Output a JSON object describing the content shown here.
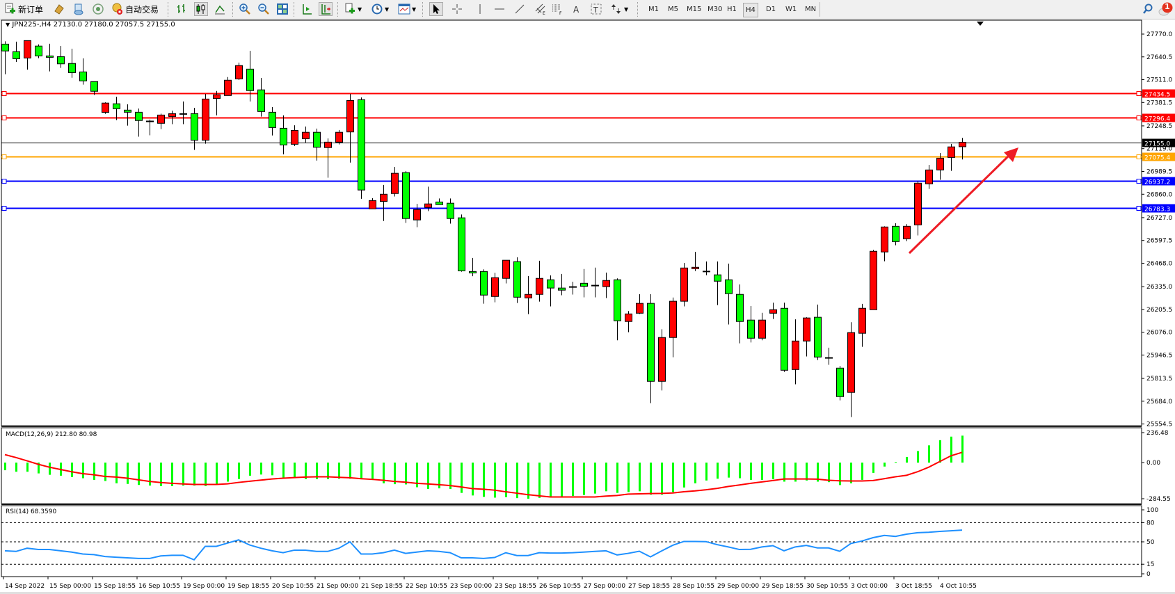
{
  "toolbar": {
    "new_order_label": "新订单",
    "auto_trading_label": "自动交易",
    "timeframes": [
      "M1",
      "M5",
      "M15",
      "M30",
      "H1",
      "H4",
      "D1",
      "W1",
      "MN"
    ],
    "active_timeframe": "H4",
    "notification_count": "1"
  },
  "chart_header": "JPN225-,H4  27130.0 27180.0 27057.5 27155.0",
  "macd_label": "MACD(12,26,9) 212.80 80.98",
  "rsi_label": "RSI(14) 68.3590",
  "colors": {
    "bull": "#ff0000",
    "bear": "#00ff00",
    "macd_hist": "#00ff00",
    "macd_signal": "#ff0000",
    "rsi": "#1e90ff",
    "resistance": "#ff0000",
    "pivot": "#ffa500",
    "support": "#0000ff"
  },
  "chart_data": [
    {
      "type": "candlestick",
      "symbol": "JPN225-",
      "timeframe": "H4",
      "ohlc_order": [
        "open",
        "high",
        "low",
        "close"
      ],
      "candles": [
        [
          27713,
          27729,
          27542,
          27674
        ],
        [
          27670,
          27727,
          27612,
          27630
        ],
        [
          27634,
          27733,
          27568,
          27733
        ],
        [
          27702,
          27711,
          27633,
          27646
        ],
        [
          27646,
          27715,
          27558,
          27638
        ],
        [
          27642,
          27703,
          27578,
          27601
        ],
        [
          27603,
          27687,
          27522,
          27551
        ],
        [
          27555,
          27632,
          27483,
          27504
        ],
        [
          27500,
          27500,
          27424,
          27445
        ],
        [
          27325,
          27382,
          27317,
          27378
        ],
        [
          27374,
          27414,
          27281,
          27346
        ],
        [
          27338,
          27371,
          27250,
          27326
        ],
        [
          27326,
          27347,
          27187,
          27279
        ],
        [
          27274,
          27284,
          27195,
          27274
        ],
        [
          27263,
          27318,
          27230,
          27310
        ],
        [
          27302,
          27335,
          27258,
          27318
        ],
        [
          27316,
          27387,
          27258,
          27316
        ],
        [
          27318,
          27351,
          27112,
          27167
        ],
        [
          27167,
          27430,
          27147,
          27401
        ],
        [
          27404,
          27447,
          27308,
          27425
        ],
        [
          27421,
          27526,
          27421,
          27508
        ],
        [
          27515,
          27608,
          27509,
          27591
        ],
        [
          27571,
          27675,
          27387,
          27449
        ],
        [
          27453,
          27521,
          27301,
          27330
        ],
        [
          27326,
          27355,
          27194,
          27239
        ],
        [
          27235,
          27308,
          27087,
          27140
        ],
        [
          27144,
          27252,
          27134,
          27223
        ],
        [
          27175,
          27245,
          27154,
          27212
        ],
        [
          27212,
          27233,
          27051,
          27127
        ],
        [
          27125,
          27177,
          26954,
          27156
        ],
        [
          27156,
          27225,
          27143,
          27212
        ],
        [
          27214,
          27430,
          27040,
          27393
        ],
        [
          27397,
          27410,
          26834,
          26884
        ],
        [
          26777,
          26838,
          26777,
          26824
        ],
        [
          26819,
          26913,
          26708,
          26860
        ],
        [
          26864,
          27015,
          26847,
          26979
        ],
        [
          26983,
          26992,
          26697,
          26722
        ],
        [
          26714,
          26805,
          26673,
          26773
        ],
        [
          26785,
          26903,
          26764,
          26805
        ],
        [
          26816,
          26836,
          26801,
          26801
        ],
        [
          26809,
          26836,
          26693,
          26722
        ],
        [
          26726,
          26745,
          26420,
          26425
        ],
        [
          26421,
          26498,
          26394,
          26413
        ],
        [
          26421,
          26433,
          26238,
          26287
        ],
        [
          26279,
          26414,
          26246,
          26386
        ],
        [
          26382,
          26485,
          26353,
          26485
        ],
        [
          26477,
          26502,
          26242,
          26275
        ],
        [
          26271,
          26395,
          26179,
          26291
        ],
        [
          26291,
          26482,
          26250,
          26382
        ],
        [
          26374,
          26399,
          26223,
          26327
        ],
        [
          26327,
          26407,
          26286,
          26315
        ],
        [
          26333,
          26363,
          26290,
          26333
        ],
        [
          26354,
          26435,
          26274,
          26337
        ],
        [
          26341,
          26443,
          26274,
          26341
        ],
        [
          26335,
          26415,
          26270,
          26370
        ],
        [
          26374,
          26382,
          26030,
          26141
        ],
        [
          26137,
          26196,
          26076,
          26180
        ],
        [
          26184,
          26292,
          26180,
          26240
        ],
        [
          26240,
          26292,
          25673,
          25797
        ],
        [
          25797,
          26093,
          25745,
          26046
        ],
        [
          26046,
          26273,
          25934,
          26252
        ],
        [
          26252,
          26470,
          26223,
          26441
        ],
        [
          26437,
          26533,
          26424,
          26445
        ],
        [
          26421,
          26478,
          26400,
          26421
        ],
        [
          26402,
          26478,
          26230,
          26366
        ],
        [
          26374,
          26466,
          26120,
          26295
        ],
        [
          26291,
          26348,
          26013,
          26137
        ],
        [
          26145,
          26225,
          26018,
          26042
        ],
        [
          26042,
          26186,
          26030,
          26145
        ],
        [
          26184,
          26244,
          26151,
          26204
        ],
        [
          26212,
          26244,
          25851,
          25860
        ],
        [
          25864,
          26149,
          25780,
          26026
        ],
        [
          26026,
          26161,
          25938,
          26157
        ],
        [
          26161,
          26233,
          25918,
          25935
        ],
        [
          25930,
          25988,
          25891,
          25930
        ],
        [
          25872,
          25885,
          25689,
          25710
        ],
        [
          25734,
          26133,
          25594,
          26074
        ],
        [
          26070,
          26237,
          25993,
          26212
        ],
        [
          26204,
          26544,
          26204,
          26536
        ],
        [
          26532,
          26678,
          26479,
          26674
        ],
        [
          26678,
          26695,
          26570,
          26591
        ],
        [
          26607,
          26690,
          26594,
          26678
        ],
        [
          26686,
          26936,
          26626,
          26923
        ],
        [
          26919,
          27027,
          26890,
          26998
        ],
        [
          26998,
          27094,
          26942,
          27065
        ],
        [
          27069,
          27146,
          26993,
          27129
        ],
        [
          27130,
          27180,
          27057.5,
          27155
        ]
      ],
      "price_ticks": [
        "27770.0",
        "27640.5",
        "27511.0",
        "27381.5",
        "27248.5",
        "27119.0",
        "26989.5",
        "26860.0",
        "26727.0",
        "26597.5",
        "26468.0",
        "26335.0",
        "26205.5",
        "26076.0",
        "25946.5",
        "25813.5",
        "25684.0",
        "25554.5"
      ],
      "ylim": [
        25554.5,
        27770.0
      ],
      "current_price": {
        "value": 27155.0,
        "label": "27155.0",
        "color": "#000000"
      },
      "horizontal_lines": [
        {
          "value": 27434.5,
          "label": "27434.5",
          "color": "#ff0000"
        },
        {
          "value": 27296.4,
          "label": "27296.4",
          "color": "#ff0000"
        },
        {
          "value": 27075.4,
          "label": "27075.4",
          "color": "#ffa500"
        },
        {
          "value": 26937.2,
          "label": "26937.2",
          "color": "#0000ff"
        },
        {
          "value": 26783.3,
          "label": "26783.3",
          "color": "#0000ff"
        }
      ],
      "annotations": [
        {
          "type": "arrow",
          "direction": "up-right",
          "color": "#ee1c25"
        }
      ],
      "time_labels": [
        "14 Sep 2022",
        "15 Sep 00:00",
        "15 Sep 18:55",
        "16 Sep 10:55",
        "19 Sep 00:00",
        "19 Sep 18:55",
        "20 Sep 10:55",
        "21 Sep 00:00",
        "21 Sep 18:55",
        "22 Sep 10:55",
        "23 Sep 00:00",
        "23 Sep 18:55",
        "26 Sep 10:55",
        "27 Sep 00:00",
        "27 Sep 18:55",
        "28 Sep 10:55",
        "29 Sep 00:00",
        "29 Sep 18:55",
        "30 Sep 10:55",
        "3 Oct 00:00",
        "3 Oct 18:55",
        "4 Oct 10:55"
      ],
      "time_label_every_n_candles": 4
    },
    {
      "type": "bar+line",
      "title": "MACD(12,26,9) 212.80 80.98",
      "ylim": [
        -284.55,
        236.48
      ],
      "ticks": [
        "236.48",
        "0.00",
        "-284.55"
      ],
      "histogram": [
        -60,
        -72,
        -72,
        -85,
        -96,
        -103,
        -114,
        -123,
        -136,
        -145,
        -163,
        -168,
        -176,
        -181,
        -185,
        -185,
        -181,
        -181,
        -185,
        -172,
        -150,
        -129,
        -103,
        -94,
        -100,
        -118,
        -123,
        -130,
        -130,
        -130,
        -127,
        -127,
        -130,
        -137,
        -163,
        -170,
        -172,
        -194,
        -208,
        -203,
        -208,
        -239,
        -259,
        -270,
        -276,
        -272,
        -280,
        -284.55,
        -278,
        -268,
        -268,
        -263,
        -255,
        -244,
        -226,
        -239,
        -232,
        -226,
        -253,
        -253,
        -232,
        -196,
        -163,
        -141,
        -127,
        -118,
        -123,
        -136,
        -136,
        -130,
        -150,
        -150,
        -141,
        -150,
        -154,
        -177,
        -163,
        -136,
        -81,
        -31,
        5,
        45,
        91,
        136,
        177,
        205,
        212.8
      ],
      "signal": [
        63,
        40,
        14,
        -13,
        -36,
        -54,
        -72,
        -87,
        -96,
        -109,
        -114,
        -123,
        -136,
        -148,
        -157,
        -163,
        -168,
        -172,
        -172,
        -172,
        -167,
        -156,
        -147,
        -138,
        -129,
        -123,
        -118,
        -114,
        -112,
        -112,
        -116,
        -119,
        -127,
        -132,
        -139,
        -148,
        -154,
        -163,
        -168,
        -174,
        -181,
        -192,
        -205,
        -210,
        -217,
        -230,
        -241,
        -253,
        -262,
        -271,
        -271,
        -271,
        -271,
        -271,
        -264,
        -259,
        -248,
        -246,
        -244,
        -243,
        -239,
        -230,
        -223,
        -214,
        -203,
        -188,
        -176,
        -163,
        -152,
        -141,
        -129,
        -129,
        -129,
        -130,
        -139,
        -143,
        -145,
        -145,
        -141,
        -127,
        -112,
        -100,
        -72,
        -36,
        9,
        54,
        80.98
      ]
    },
    {
      "type": "line",
      "title": "RSI(14) 68.3590",
      "ylim": [
        0,
        100
      ],
      "ticks": [
        "100",
        "80",
        "50",
        "15",
        "0"
      ],
      "levels": [
        80,
        50,
        15
      ],
      "values": [
        36,
        35,
        40,
        38,
        38,
        36,
        34,
        31,
        30,
        27,
        26,
        25,
        24,
        24,
        28,
        29,
        29,
        22,
        43,
        43,
        48,
        53,
        45,
        40,
        36,
        33,
        37,
        37,
        35,
        35,
        40,
        50,
        31,
        31,
        33,
        37,
        32,
        34,
        36,
        35,
        33,
        25,
        25,
        24,
        25.5,
        33,
        28.6,
        28.6,
        33,
        32.5,
        32.5,
        33,
        34,
        35,
        36,
        29.5,
        32,
        35.3,
        26.5,
        35.7,
        44.6,
        50.6,
        50.6,
        50.3,
        45.6,
        42,
        38,
        38.3,
        42,
        44,
        36,
        42,
        44.4,
        40.5,
        40.5,
        35.3,
        47.4,
        51.3,
        56.5,
        60,
        58.5,
        62,
        64.3,
        65,
        66.3,
        67.3,
        68.359
      ]
    }
  ]
}
